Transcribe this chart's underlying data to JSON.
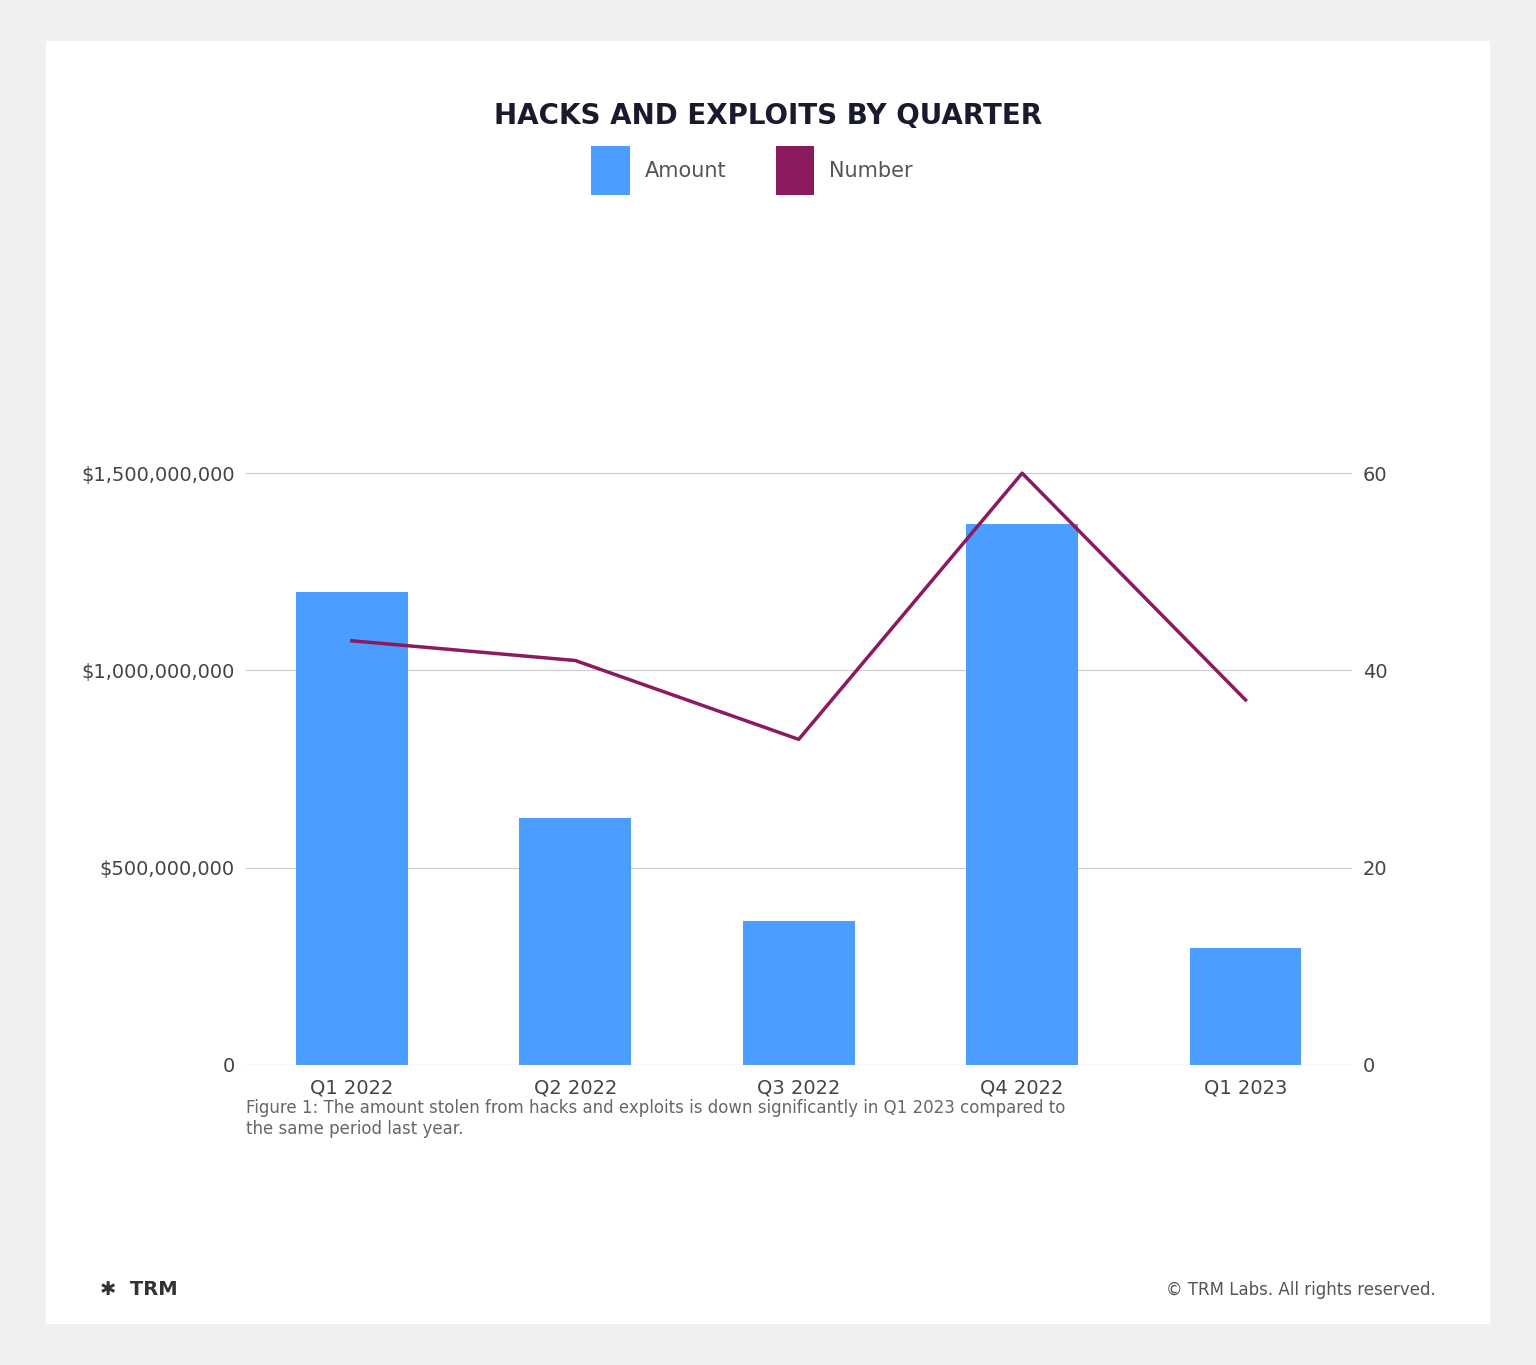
{
  "title": "HACKS AND EXPLOITS BY QUARTER",
  "categories": [
    "Q1 2022",
    "Q2 2022",
    "Q3 2022",
    "Q4 2022",
    "Q1 2023"
  ],
  "bar_values": [
    1200000000,
    625000000,
    365000000,
    1370000000,
    295000000
  ],
  "line_values": [
    43,
    41,
    33,
    60,
    37
  ],
  "bar_color": "#4B9EFF",
  "line_color": "#8B1A5E",
  "left_ylim": [
    0,
    1800000000
  ],
  "right_ylim": [
    0,
    72
  ],
  "left_yticks": [
    0,
    500000000,
    1000000000,
    1500000000
  ],
  "right_yticks": [
    0,
    20,
    40,
    60
  ],
  "background_color": "#FFFFFF",
  "outer_bg": "#F0F0F0",
  "caption": "Figure 1: The amount stolen from hacks and exploits is down significantly in Q1 2023 compared to\nthe same period last year.",
  "footer_left": "✱  TRM",
  "footer_right": "© TRM Labs. All rights reserved.",
  "legend_amount_label": "Amount",
  "legend_number_label": "Number",
  "title_fontsize": 20,
  "tick_fontsize": 14,
  "legend_fontsize": 15,
  "caption_fontsize": 12,
  "footer_fontsize": 12
}
